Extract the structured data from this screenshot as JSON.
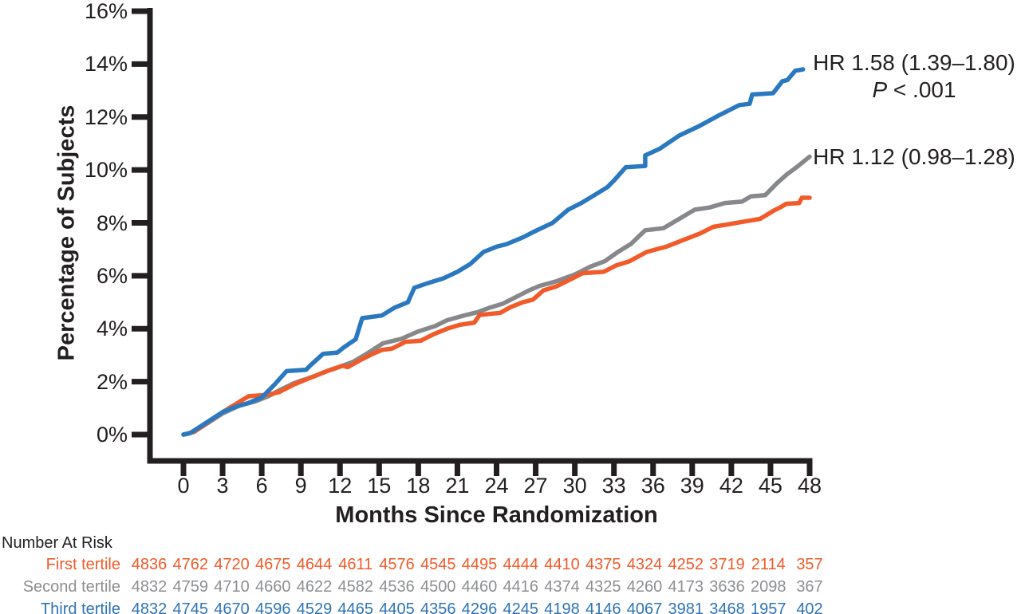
{
  "annotations": {
    "blue": {
      "hr": "HR 1.58 (1.39–1.80)",
      "p_symbol": "P",
      "p_rest": " < .001"
    },
    "gray": {
      "hr": "HR 1.12 (0.98–1.28)"
    }
  },
  "chart_data": {
    "type": "line",
    "title": "",
    "xlabel": "Months Since Randomization",
    "ylabel": "Percentage of Subjects",
    "xlim": [
      0,
      48
    ],
    "ylim": [
      0,
      16
    ],
    "grid": false,
    "legend_position": "none",
    "x_ticks": [
      0,
      3,
      6,
      9,
      12,
      15,
      18,
      21,
      24,
      27,
      30,
      33,
      36,
      39,
      42,
      45,
      48
    ],
    "y_ticks": [
      0,
      2,
      4,
      6,
      8,
      10,
      12,
      14,
      16
    ],
    "y_tick_suffix": "%",
    "axis_color": "#231f20",
    "series": [
      {
        "name": "Second tertile",
        "color": "#86888b",
        "annotation": "HR 1.12 (0.98–1.28)",
        "points": [
          [
            0,
            0
          ],
          [
            0.8,
            0.1
          ],
          [
            3,
            0.8
          ],
          [
            4.3,
            1.1
          ],
          [
            5.5,
            1.25
          ],
          [
            6.5,
            1.45
          ],
          [
            7.3,
            1.66
          ],
          [
            8.5,
            1.95
          ],
          [
            10,
            2.2
          ],
          [
            11,
            2.4
          ],
          [
            12.2,
            2.6
          ],
          [
            13,
            2.75
          ],
          [
            14.1,
            3.07
          ],
          [
            15.3,
            3.45
          ],
          [
            16.7,
            3.62
          ],
          [
            18,
            3.9
          ],
          [
            19.3,
            4.1
          ],
          [
            20.2,
            4.32
          ],
          [
            21.5,
            4.5
          ],
          [
            22.5,
            4.62
          ],
          [
            23.5,
            4.8
          ],
          [
            24.5,
            4.95
          ],
          [
            25.5,
            5.2
          ],
          [
            26.5,
            5.45
          ],
          [
            27.3,
            5.62
          ],
          [
            28.5,
            5.78
          ],
          [
            30,
            6.05
          ],
          [
            31.2,
            6.35
          ],
          [
            32.3,
            6.55
          ],
          [
            33.3,
            6.9
          ],
          [
            34.3,
            7.2
          ],
          [
            35.4,
            7.72
          ],
          [
            36.8,
            7.8
          ],
          [
            38,
            8.15
          ],
          [
            39.2,
            8.5
          ],
          [
            40.3,
            8.58
          ],
          [
            41.5,
            8.75
          ],
          [
            42.8,
            8.8
          ],
          [
            43.5,
            9.0
          ],
          [
            44.6,
            9.05
          ],
          [
            45.5,
            9.5
          ],
          [
            46.3,
            9.85
          ],
          [
            47,
            10.1
          ],
          [
            48,
            10.5
          ]
        ]
      },
      {
        "name": "First tertile",
        "color": "#f15a29",
        "annotation": "",
        "points": [
          [
            0,
            0
          ],
          [
            0.8,
            0.1
          ],
          [
            3,
            0.85
          ],
          [
            4,
            1.15
          ],
          [
            5,
            1.45
          ],
          [
            6.4,
            1.5
          ],
          [
            7.3,
            1.6
          ],
          [
            8.5,
            1.9
          ],
          [
            10,
            2.2
          ],
          [
            11,
            2.4
          ],
          [
            12.2,
            2.6
          ],
          [
            12.6,
            2.55
          ],
          [
            13.5,
            2.8
          ],
          [
            14.5,
            3.05
          ],
          [
            15.2,
            3.2
          ],
          [
            16,
            3.25
          ],
          [
            17,
            3.5
          ],
          [
            18.2,
            3.55
          ],
          [
            19.2,
            3.8
          ],
          [
            20.2,
            4.0
          ],
          [
            21.2,
            4.15
          ],
          [
            22.3,
            4.23
          ],
          [
            22.7,
            4.52
          ],
          [
            24.3,
            4.6
          ],
          [
            25,
            4.8
          ],
          [
            26,
            5.0
          ],
          [
            26.8,
            5.1
          ],
          [
            27.6,
            5.45
          ],
          [
            28.6,
            5.6
          ],
          [
            29.6,
            5.85
          ],
          [
            30.6,
            6.1
          ],
          [
            32.2,
            6.15
          ],
          [
            33.2,
            6.4
          ],
          [
            34.2,
            6.55
          ],
          [
            35.5,
            6.9
          ],
          [
            37,
            7.1
          ],
          [
            38.3,
            7.35
          ],
          [
            39.6,
            7.6
          ],
          [
            40.6,
            7.85
          ],
          [
            41.8,
            7.95
          ],
          [
            43,
            8.05
          ],
          [
            44.2,
            8.15
          ],
          [
            45.2,
            8.45
          ],
          [
            45.8,
            8.6
          ],
          [
            46.2,
            8.72
          ],
          [
            47.2,
            8.75
          ],
          [
            47.4,
            8.95
          ],
          [
            48,
            8.95
          ]
        ]
      },
      {
        "name": "Third tertile",
        "color": "#2a79c0",
        "annotation": "HR 1.58 (1.39–1.80), P < .001",
        "points": [
          [
            0,
            0
          ],
          [
            0.5,
            0.05
          ],
          [
            3,
            0.85
          ],
          [
            4,
            1.05
          ],
          [
            5,
            1.2
          ],
          [
            6,
            1.4
          ],
          [
            7,
            1.9
          ],
          [
            7.9,
            2.4
          ],
          [
            9.4,
            2.45
          ],
          [
            9.7,
            2.6
          ],
          [
            10.7,
            3.05
          ],
          [
            11.8,
            3.1
          ],
          [
            12.3,
            3.3
          ],
          [
            13.2,
            3.6
          ],
          [
            13.7,
            4.4
          ],
          [
            15.2,
            4.5
          ],
          [
            16.2,
            4.8
          ],
          [
            17.2,
            5.0
          ],
          [
            17.7,
            5.55
          ],
          [
            18.6,
            5.7
          ],
          [
            19.9,
            5.9
          ],
          [
            21,
            6.15
          ],
          [
            22,
            6.45
          ],
          [
            23,
            6.9
          ],
          [
            24,
            7.1
          ],
          [
            24.8,
            7.2
          ],
          [
            26,
            7.45
          ],
          [
            27,
            7.7
          ],
          [
            28.3,
            8.0
          ],
          [
            29.5,
            8.5
          ],
          [
            30.5,
            8.75
          ],
          [
            31.5,
            9.05
          ],
          [
            32.5,
            9.35
          ],
          [
            33,
            9.6
          ],
          [
            33.9,
            10.1
          ],
          [
            35.4,
            10.15
          ],
          [
            35.4,
            10.55
          ],
          [
            36.5,
            10.8
          ],
          [
            38,
            11.3
          ],
          [
            39.5,
            11.65
          ],
          [
            41,
            12.05
          ],
          [
            42,
            12.3
          ],
          [
            42.6,
            12.45
          ],
          [
            43.4,
            12.5
          ],
          [
            43.6,
            12.85
          ],
          [
            45.2,
            12.9
          ],
          [
            45.9,
            13.35
          ],
          [
            46.3,
            13.4
          ],
          [
            46.9,
            13.75
          ],
          [
            47.5,
            13.8
          ]
        ]
      }
    ]
  },
  "risk_table": {
    "title": "Number At Risk",
    "months": [
      0,
      3,
      6,
      9,
      12,
      15,
      18,
      21,
      24,
      27,
      30,
      33,
      36,
      39,
      42,
      45,
      48
    ],
    "rows": [
      {
        "label": "First tertile",
        "color": "#f15a29",
        "values": [
          4836,
          4762,
          4720,
          4675,
          4644,
          4611,
          4576,
          4545,
          4495,
          4444,
          4410,
          4375,
          4324,
          4252,
          3719,
          2114,
          357
        ]
      },
      {
        "label": "Second tertile",
        "color": "#8d8f92",
        "values": [
          4832,
          4759,
          4710,
          4660,
          4622,
          4582,
          4536,
          4500,
          4460,
          4416,
          4374,
          4325,
          4260,
          4173,
          3636,
          2098,
          367
        ]
      },
      {
        "label": "Third tertile",
        "color": "#2e74b6",
        "values": [
          4832,
          4745,
          4670,
          4596,
          4529,
          4465,
          4405,
          4356,
          4296,
          4245,
          4198,
          4146,
          4067,
          3981,
          3468,
          1957,
          402
        ]
      }
    ]
  }
}
